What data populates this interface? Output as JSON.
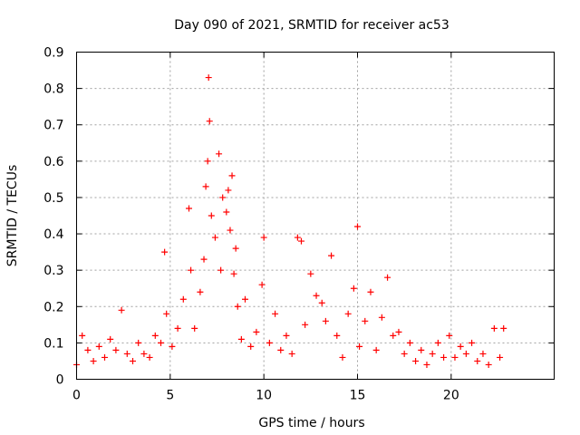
{
  "chart_data": {
    "type": "scatter",
    "title": "Day 090 of 2021, SRMTID for receiver ac53",
    "xlabel": "GPS time / hours",
    "ylabel": "SRMTID / TECUs",
    "xlim": [
      0,
      25.5
    ],
    "ylim": [
      0,
      0.9
    ],
    "xticks": [
      0,
      5,
      10,
      15,
      20
    ],
    "xtick_labels": [
      "0",
      "5",
      "10",
      "15",
      "20"
    ],
    "yticks": [
      0,
      0.1,
      0.2,
      0.3,
      0.4,
      0.5,
      0.6,
      0.7,
      0.8,
      0.9
    ],
    "ytick_labels": [
      "0",
      "0.1",
      "0.2",
      "0.3",
      "0.4",
      "0.5",
      "0.6",
      "0.7",
      "0.8",
      "0.9"
    ],
    "grid": true,
    "marker": "+",
    "color": "#ff0000",
    "series": [
      {
        "name": "SRMTID",
        "x": [
          0.0,
          0.3,
          0.6,
          0.9,
          1.2,
          1.5,
          1.8,
          2.1,
          2.4,
          2.7,
          3.0,
          3.3,
          3.6,
          3.9,
          4.2,
          4.5,
          4.7,
          4.8,
          5.1,
          5.4,
          5.7,
          6.0,
          6.1,
          6.3,
          6.6,
          6.8,
          6.9,
          7.0,
          7.05,
          7.1,
          7.2,
          7.4,
          7.6,
          7.7,
          7.8,
          8.0,
          8.1,
          8.2,
          8.3,
          8.4,
          8.5,
          8.6,
          8.8,
          9.0,
          9.3,
          9.6,
          9.9,
          10.0,
          10.3,
          10.6,
          10.9,
          11.2,
          11.5,
          11.8,
          12.0,
          12.2,
          12.5,
          12.8,
          13.1,
          13.3,
          13.6,
          13.9,
          14.2,
          14.5,
          14.8,
          15.0,
          15.1,
          15.4,
          15.7,
          16.0,
          16.3,
          16.6,
          16.9,
          17.2,
          17.5,
          17.8,
          18.1,
          18.4,
          18.7,
          19.0,
          19.3,
          19.6,
          19.9,
          20.2,
          20.5,
          20.8,
          21.1,
          21.4,
          21.7,
          22.0,
          22.3,
          22.6,
          22.8
        ],
        "y": [
          0.04,
          0.12,
          0.08,
          0.05,
          0.09,
          0.06,
          0.11,
          0.08,
          0.19,
          0.07,
          0.05,
          0.1,
          0.07,
          0.06,
          0.12,
          0.1,
          0.35,
          0.18,
          0.09,
          0.14,
          0.22,
          0.47,
          0.3,
          0.14,
          0.24,
          0.33,
          0.53,
          0.6,
          0.83,
          0.71,
          0.45,
          0.39,
          0.62,
          0.3,
          0.5,
          0.46,
          0.52,
          0.41,
          0.56,
          0.29,
          0.36,
          0.2,
          0.11,
          0.22,
          0.09,
          0.13,
          0.26,
          0.39,
          0.1,
          0.18,
          0.08,
          0.12,
          0.07,
          0.39,
          0.38,
          0.15,
          0.29,
          0.23,
          0.21,
          0.16,
          0.34,
          0.12,
          0.06,
          0.18,
          0.25,
          0.42,
          0.09,
          0.16,
          0.24,
          0.08,
          0.17,
          0.28,
          0.12,
          0.13,
          0.07,
          0.1,
          0.05,
          0.08,
          0.04,
          0.07,
          0.1,
          0.06,
          0.12,
          0.06,
          0.09,
          0.07,
          0.1,
          0.05,
          0.07,
          0.04,
          0.14,
          0.06,
          0.14
        ]
      }
    ]
  }
}
